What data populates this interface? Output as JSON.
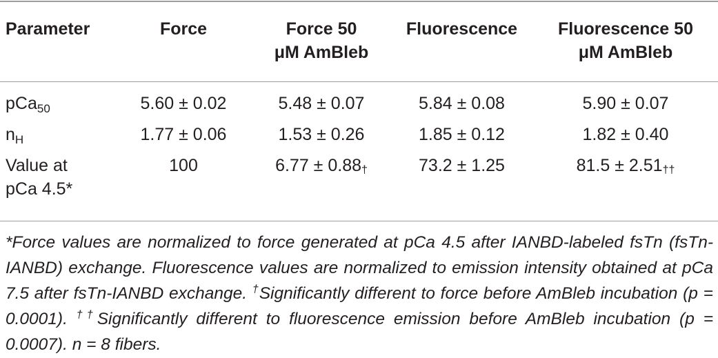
{
  "columns": [
    {
      "line1": "Parameter",
      "line2": ""
    },
    {
      "line1": "Force",
      "line2": ""
    },
    {
      "line1": "Force 50",
      "line2": "μM AmBleb"
    },
    {
      "line1": "Fluorescence",
      "line2": ""
    },
    {
      "line1": "Fluorescence 50",
      "line2": "μM AmBleb"
    }
  ],
  "rows": [
    {
      "param": "pCa",
      "param_sub": "50",
      "force": "5.60 ± 0.02",
      "force_ambleb": "5.48 ± 0.07",
      "fluor": "5.84 ± 0.08",
      "fluor_ambleb": "5.90 ± 0.07"
    },
    {
      "param": "n",
      "param_sub": "H",
      "force": "1.77 ± 0.06",
      "force_ambleb": "1.53 ± 0.26",
      "fluor": "1.85 ± 0.12",
      "fluor_ambleb": "1.82 ± 0.40"
    },
    {
      "param_line1": "Value at",
      "param_line2": "pCa 4.5*",
      "force": "100",
      "force_ambleb": "6.77 ± 0.88",
      "force_ambleb_mark": "†",
      "fluor": "73.2 ± 1.25",
      "fluor_ambleb": "81.5 ± 2.51",
      "fluor_ambleb_mark": "††"
    }
  ],
  "footnote": {
    "part1": "*Force values are normalized to force generated at pCa 4.5 after IANBD-labeled fsTn (fsTn-IANBD) exchange. Fluorescence values are normalized to emission intensity obtained at pCa 7.5 after fsTn-IANBD exchange. ",
    "mark1": "†",
    "part2": "Significantly different to force before AmBleb incubation (p = 0.0001). ",
    "mark2": "††",
    "part3": "Significantly different to fluorescence emission before AmBleb incubation (p = 0.0007). n = 8 fibers."
  }
}
